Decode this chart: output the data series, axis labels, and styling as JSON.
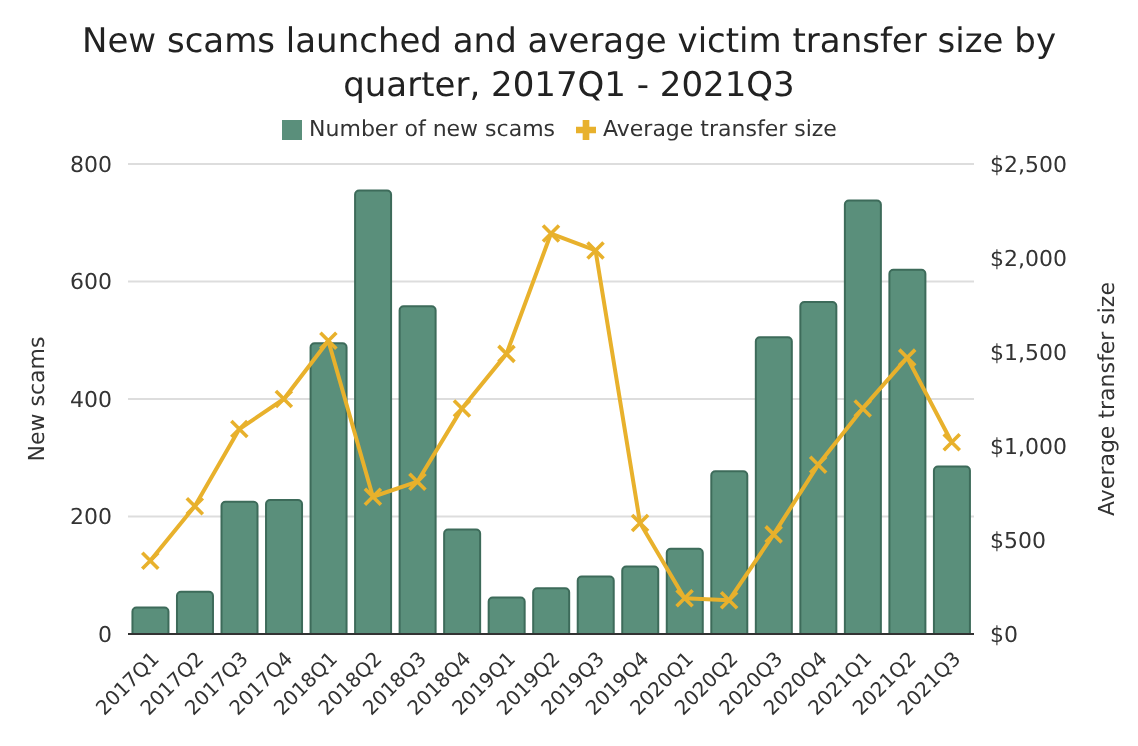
{
  "chart_data": {
    "type": "bar",
    "title": "New scams launched and average victim transfer size by quarter, 2017Q1 - 2021Q3",
    "categories": [
      "2017Q1",
      "2017Q2",
      "2017Q3",
      "2017Q4",
      "2018Q1",
      "2018Q2",
      "2018Q3",
      "2018Q4",
      "2019Q1",
      "2019Q2",
      "2019Q3",
      "2019Q4",
      "2020Q1",
      "2020Q2",
      "2020Q3",
      "2020Q4",
      "2021Q1",
      "2021Q2",
      "2021Q3"
    ],
    "series": [
      {
        "name": "Number of new scams",
        "color": "#5a8f7b",
        "values": [
          45,
          72,
          225,
          228,
          495,
          755,
          558,
          178,
          62,
          78,
          98,
          115,
          145,
          277,
          505,
          565,
          738,
          620,
          285
        ]
      },
      {
        "name": "Average transfer size",
        "type": "line",
        "axis": "y2",
        "color": "#e8b12c",
        "marker": "cross",
        "values": [
          390,
          680,
          1090,
          1250,
          1560,
          730,
          810,
          1200,
          1490,
          2130,
          2040,
          590,
          190,
          180,
          530,
          900,
          1200,
          1470,
          1020
        ]
      }
    ],
    "ylabel": "New scams",
    "y2label": "Average transfer size",
    "ylim": [
      0,
      800
    ],
    "yticks": [
      0,
      200,
      400,
      600,
      800
    ],
    "y2lim": [
      0,
      2500
    ],
    "y2ticks": [
      {
        "value": 0,
        "label": "$0"
      },
      {
        "value": 500,
        "label": "$500"
      },
      {
        "value": 1000,
        "label": "$1,000"
      },
      {
        "value": 1500,
        "label": "$1,500"
      },
      {
        "value": 2000,
        "label": "$2,000"
      },
      {
        "value": 2500,
        "label": "$2,500"
      }
    ],
    "grid": "y",
    "legend": "top"
  }
}
